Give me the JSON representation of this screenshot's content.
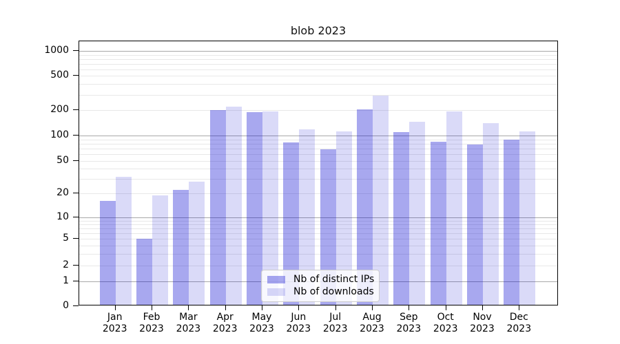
{
  "chart_data": {
    "type": "bar",
    "title": "blob 2023",
    "xlabel": "",
    "ylabel": "",
    "yscale": "symlog",
    "ylim": [
      0,
      1300
    ],
    "yticks": [
      0,
      1,
      2,
      5,
      10,
      20,
      50,
      100,
      200,
      500,
      1000
    ],
    "grid": "horizontal major+minor (log)",
    "legend_position": "lower center",
    "categories": [
      "Jan 2023",
      "Feb 2023",
      "Mar 2023",
      "Apr 2023",
      "May 2023",
      "Jun 2023",
      "Jul 2023",
      "Aug 2023",
      "Sep 2023",
      "Oct 2023",
      "Nov 2023",
      "Dec 2023"
    ],
    "series": [
      {
        "name": "Nb of distinct IPs",
        "color": "rgba(5,5,210,0.35)",
        "color_over_white": "#a7a7ef",
        "values": [
          16,
          5,
          22,
          201,
          188,
          83,
          69,
          203,
          110,
          85,
          78,
          90
        ]
      },
      {
        "name": "Nb of downloads",
        "color": "rgba(5,5,210,0.15)",
        "color_over_white": "#d9d9f8",
        "values": [
          32,
          19,
          28,
          218,
          194,
          118,
          111,
          292,
          146,
          192,
          140,
          112
        ]
      }
    ]
  }
}
